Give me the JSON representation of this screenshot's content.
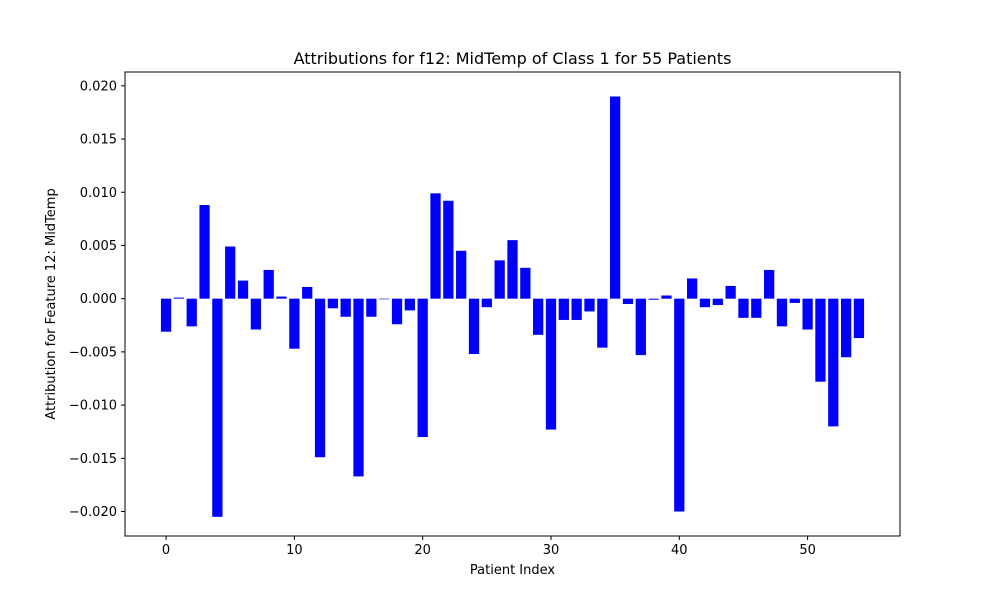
{
  "chart_data": {
    "type": "bar",
    "title": "Attributions for f12: MidTemp of Class 1 for 55 Patients",
    "xlabel": "Patient Index",
    "ylabel": "Attribution for Feature 12: MidTemp",
    "xlim": [
      -3.2,
      57.2
    ],
    "ylim": [
      -0.0223,
      0.0213
    ],
    "xticks": [
      0,
      10,
      20,
      30,
      40,
      50
    ],
    "xtick_labels": [
      "0",
      "10",
      "20",
      "30",
      "40",
      "50"
    ],
    "yticks": [
      -0.02,
      -0.015,
      -0.01,
      -0.005,
      0.0,
      0.005,
      0.01,
      0.015,
      0.02
    ],
    "ytick_labels": [
      "−0.020",
      "−0.015",
      "−0.010",
      "−0.005",
      "0.000",
      "0.005",
      "0.010",
      "0.015",
      "0.020"
    ],
    "bar_color": "#0000ff",
    "x": [
      0,
      1,
      2,
      3,
      4,
      5,
      6,
      7,
      8,
      9,
      10,
      11,
      12,
      13,
      14,
      15,
      16,
      17,
      18,
      19,
      20,
      21,
      22,
      23,
      24,
      25,
      26,
      27,
      28,
      29,
      30,
      31,
      32,
      33,
      34,
      35,
      36,
      37,
      38,
      39,
      40,
      41,
      42,
      43,
      44,
      45,
      46,
      47,
      48,
      49,
      50,
      51,
      52,
      53,
      54
    ],
    "values": [
      -0.0031,
      0.0001,
      -0.0026,
      0.0088,
      -0.0205,
      0.0049,
      0.0017,
      -0.0029,
      0.0027,
      0.0002,
      -0.0047,
      0.0011,
      -0.0149,
      -0.0009,
      -0.0017,
      -0.0167,
      -0.0017,
      0.0,
      -0.0024,
      -0.0011,
      -0.013,
      0.0099,
      0.0092,
      0.0045,
      -0.0052,
      -0.0008,
      0.0036,
      0.0055,
      0.0029,
      -0.0034,
      -0.0123,
      -0.002,
      -0.002,
      -0.0012,
      -0.0046,
      0.019,
      -0.0005,
      -0.0053,
      -0.0001,
      0.0003,
      -0.02,
      0.0019,
      -0.0008,
      -0.0006,
      0.0012,
      -0.0018,
      -0.0018,
      0.0027,
      -0.0026,
      -0.0004,
      -0.0029,
      -0.0078,
      -0.012,
      -0.0055,
      -0.0037
    ]
  }
}
